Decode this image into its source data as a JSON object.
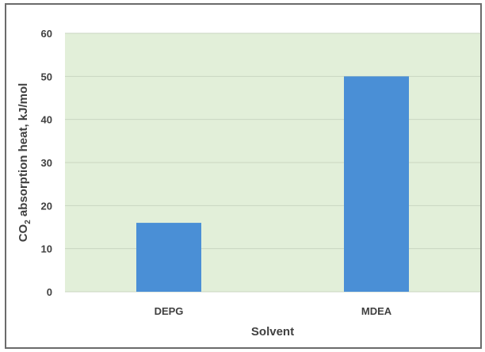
{
  "chart_data": {
    "type": "bar",
    "categories": [
      "DEPG",
      "MDEA"
    ],
    "series": [
      {
        "values": [
          16,
          50
        ]
      }
    ],
    "xlabel": "Solvent",
    "ylabel": {
      "prefix": "CO",
      "subscript": "2",
      "suffix": " absorption heat, kJ/mol"
    },
    "ylim": [
      0,
      60
    ],
    "yticks": [
      0,
      10,
      20,
      30,
      40,
      50,
      60
    ],
    "grid": true,
    "legend": "none"
  },
  "colors": {
    "plot_background": "#e2efd9",
    "bar": "#4a8fd6",
    "gridline": "#c9d6c0",
    "frame": "#6b6b6b"
  }
}
